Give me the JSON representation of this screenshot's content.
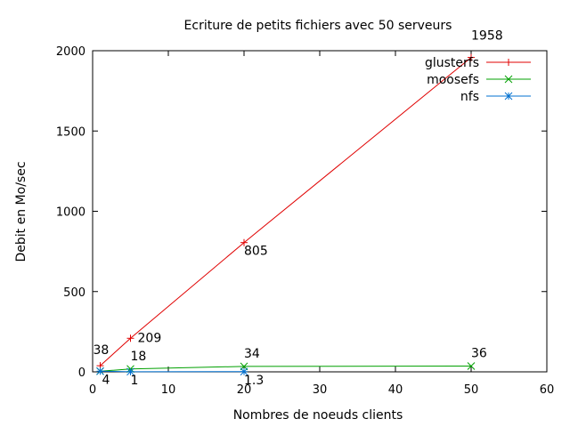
{
  "chart_data": {
    "type": "line",
    "title": "Ecriture de petits fichiers avec 50 serveurs",
    "xlabel": "Nombres de noeuds clients",
    "ylabel": "Debit en Mo/sec",
    "xlim": [
      0,
      60
    ],
    "ylim": [
      0,
      2000
    ],
    "xticks": [
      0,
      10,
      20,
      30,
      40,
      50,
      60
    ],
    "yticks": [
      0,
      500,
      1000,
      1500,
      2000
    ],
    "grid": false,
    "legend_position": "top-right",
    "series": [
      {
        "name": "glusterfs",
        "color": "#e00000",
        "marker": "plus",
        "x": [
          1,
          5,
          20,
          50
        ],
        "y": [
          38,
          209,
          805,
          1958
        ],
        "labels": [
          "38",
          "209",
          "805",
          "1958"
        ]
      },
      {
        "name": "moosefs",
        "color": "#00a000",
        "marker": "cross",
        "x": [
          1,
          5,
          20,
          50
        ],
        "y": [
          4,
          18,
          34,
          36
        ],
        "labels": [
          "4",
          "18",
          "34",
          "36"
        ]
      },
      {
        "name": "nfs",
        "color": "#0070d0",
        "marker": "star",
        "x": [
          1,
          5,
          20
        ],
        "y": [
          4,
          1,
          1.3
        ],
        "labels": [
          "",
          "1",
          "1.3"
        ]
      }
    ]
  }
}
